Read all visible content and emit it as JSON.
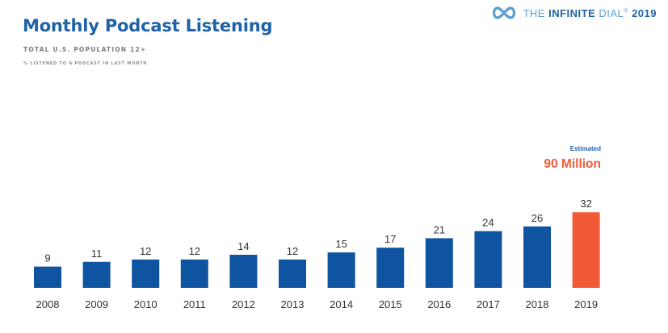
{
  "header": {
    "title": "Monthly Podcast Listening",
    "subtitle": "TOTAL U.S. POPULATION 12+",
    "note": "% LISTENED TO A PODCAST IN LAST MONTH"
  },
  "brand": {
    "prefix": "THE",
    "name": "INFINITE",
    "suffix": "DIAL",
    "registered": "®",
    "year": "2019",
    "icon": "infinity-icon"
  },
  "colors": {
    "bar": "#0e54a0",
    "highlight": "#f15a37",
    "title": "#1f63a6"
  },
  "annotation": {
    "label": "Estimated",
    "value": "90 Million"
  },
  "chart_data": {
    "type": "bar",
    "title": "Monthly Podcast Listening",
    "xlabel": "",
    "ylabel": "",
    "categories": [
      "2008",
      "2009",
      "2010",
      "2011",
      "2012",
      "2013",
      "2014",
      "2015",
      "2016",
      "2017",
      "2018",
      "2019"
    ],
    "values": [
      9,
      11,
      12,
      12,
      14,
      12,
      15,
      17,
      21,
      24,
      26,
      32
    ],
    "highlight_category": "2019",
    "grid": false,
    "legend": "none"
  }
}
